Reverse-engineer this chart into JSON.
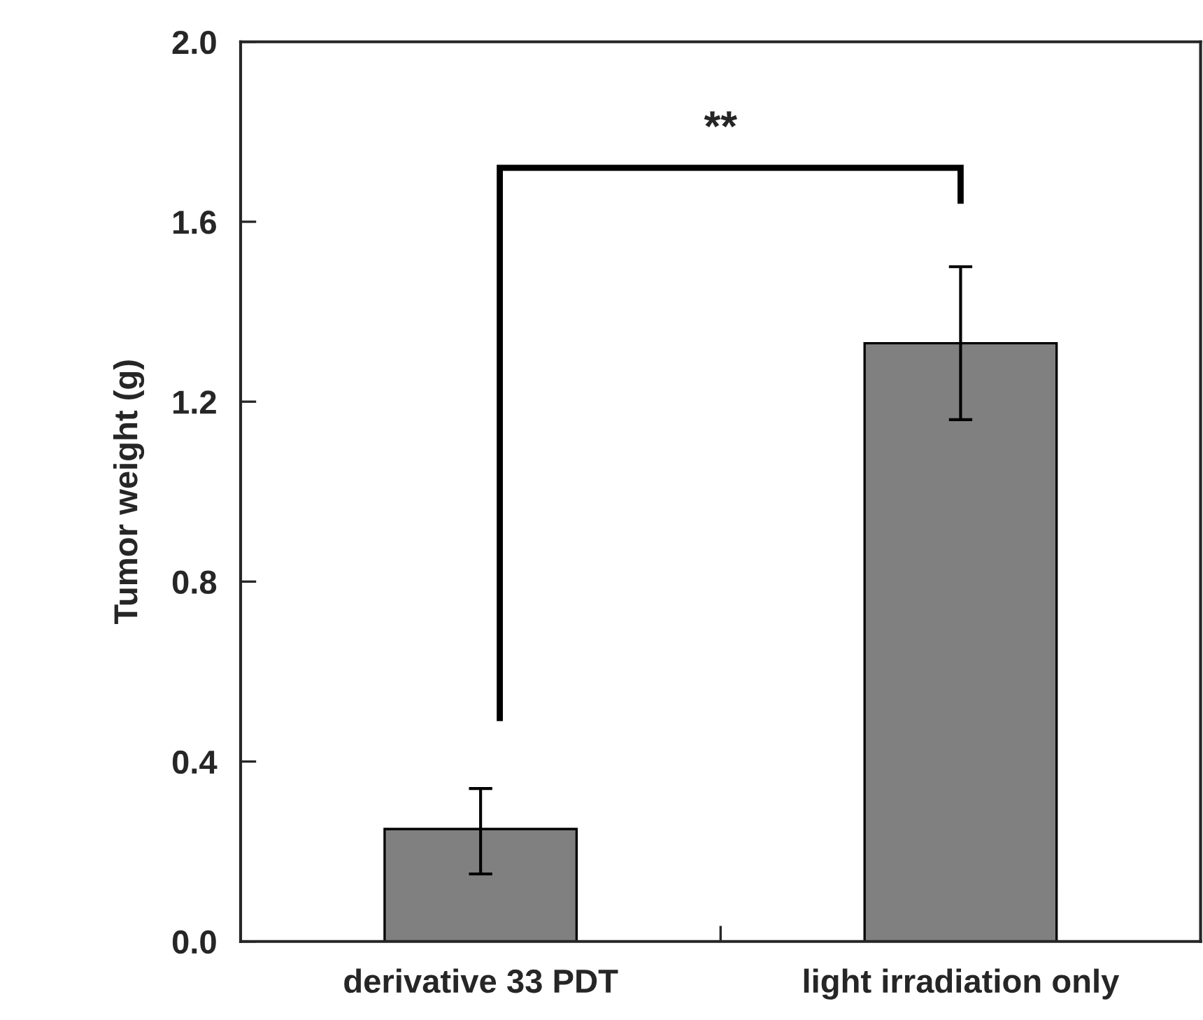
{
  "chart_data": {
    "type": "bar",
    "ylabel": "Tumor weight (g)",
    "categories": [
      "derivative 33 PDT",
      "light irradiation only"
    ],
    "values": [
      0.25,
      1.33
    ],
    "color": "#808080",
    "errors": [
      [
        0.15,
        0.34
      ],
      [
        1.16,
        1.5
      ]
    ],
    "ylim": [
      0.0,
      2.0
    ],
    "yticks": [
      {
        "value": 0,
        "label": "0.0"
      },
      0.4,
      0.8,
      1.2,
      1.6,
      {
        "value": 2,
        "label": "2.0"
      }
    ],
    "annotations": [
      "**"
    ],
    "grid": false,
    "legend": false
  }
}
